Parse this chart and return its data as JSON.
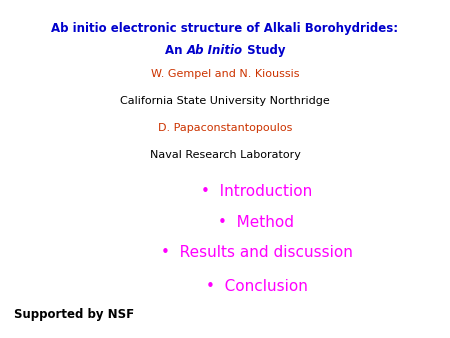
{
  "background_color": "#ffffff",
  "title_line1": "Ab initio electronic structure of Alkali Borohydrides:",
  "title_line1_color": "#0000cc",
  "title_line2_pre": "An ",
  "title_line2_italic": "Ab Initio",
  "title_line2_post": " Study",
  "title_line2_color": "#0000cc",
  "author1": "W. Gempel and N. Kioussis",
  "author1_color": "#cc3300",
  "affil1": "California State University Northridge",
  "affil1_color": "#000000",
  "author2": "D. Papaconstantopoulos",
  "author2_color": "#cc3300",
  "affil2": "Naval Research Laboratory",
  "affil2_color": "#000000",
  "bullet_items": [
    "Introduction",
    "Method",
    "Results and discussion",
    "Conclusion"
  ],
  "bullet_color": "#ff00ff",
  "bullet_fontsize": 11,
  "supported_text": "Supported by NSF",
  "supported_color": "#000000",
  "title_fontsize": 8.5,
  "author_fontsize": 8,
  "affil_fontsize": 8,
  "supported_fontsize": 8.5,
  "fig_width": 4.5,
  "fig_height": 3.38,
  "fig_dpi": 100
}
